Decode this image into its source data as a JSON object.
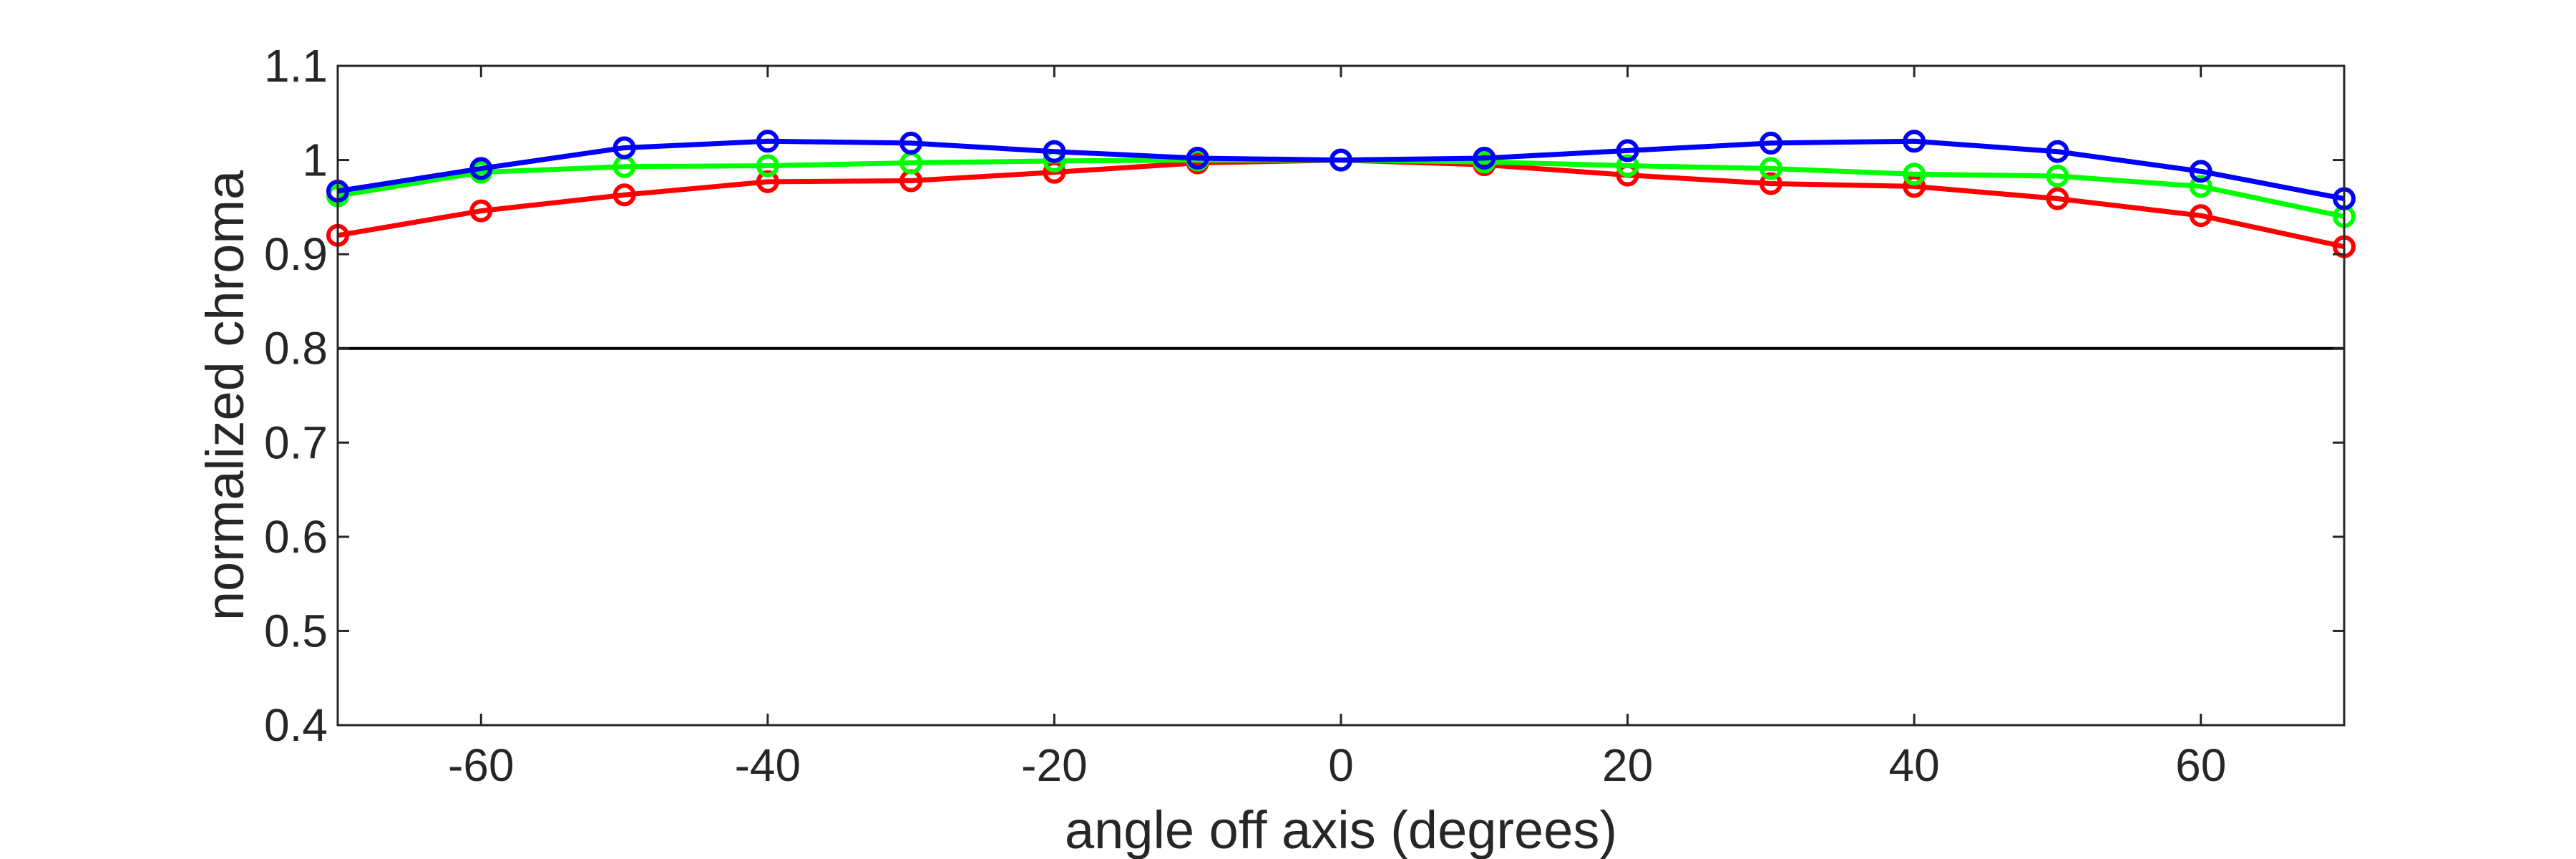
{
  "chart_data": {
    "type": "line",
    "title": "",
    "xlabel": "angle off axis (degrees)",
    "ylabel": "normalized chroma",
    "xlim": [
      -70,
      70
    ],
    "ylim": [
      0.4,
      1.1
    ],
    "x_ticks": [
      -60,
      -40,
      -20,
      0,
      20,
      40,
      60
    ],
    "x_tick_labels": [
      "-60",
      "-40",
      "-20",
      "0",
      "20",
      "40",
      "60"
    ],
    "y_ticks": [
      0.4,
      0.5,
      0.6,
      0.7,
      0.8,
      0.9,
      1.0,
      1.1
    ],
    "y_tick_labels": [
      "0.4",
      "0.5",
      "0.6",
      "0.7",
      "0.8",
      "0.9",
      "1",
      "1.1"
    ],
    "grid": false,
    "reference_line": {
      "y": 0.8,
      "color": "#000000"
    },
    "x": [
      -70,
      -60,
      -50,
      -40,
      -30,
      -20,
      -10,
      0,
      10,
      20,
      30,
      40,
      50,
      60,
      70
    ],
    "series": [
      {
        "color": "#ff0000",
        "values": [
          0.92,
          0.946,
          0.963,
          0.977,
          0.978,
          0.987,
          0.997,
          1.0,
          0.995,
          0.984,
          0.975,
          0.972,
          0.959,
          0.941,
          0.908
        ]
      },
      {
        "color": "#00ff00",
        "values": [
          0.962,
          0.987,
          0.993,
          0.994,
          0.997,
          0.999,
          1.0,
          1.0,
          0.998,
          0.994,
          0.991,
          0.985,
          0.983,
          0.972,
          0.94
        ]
      },
      {
        "color": "#0000ff",
        "values": [
          0.967,
          0.991,
          1.013,
          1.02,
          1.018,
          1.009,
          1.002,
          1.0,
          1.002,
          1.01,
          1.018,
          1.02,
          1.009,
          0.988,
          0.959
        ]
      }
    ]
  }
}
